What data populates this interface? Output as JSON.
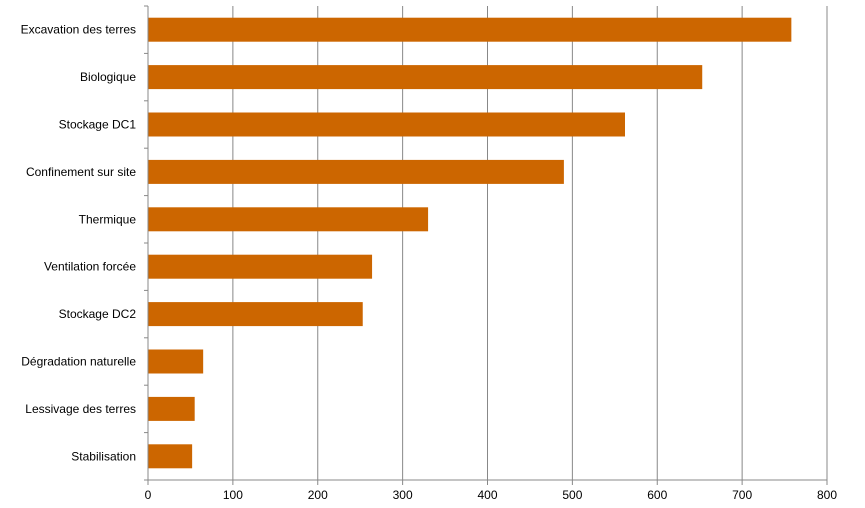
{
  "chart_data": {
    "type": "bar",
    "orientation": "horizontal",
    "title": "",
    "xlabel": "",
    "ylabel": "",
    "categories": [
      "Excavation des terres",
      "Biologique",
      "Stockage DC1",
      "Confinement sur site",
      "Thermique",
      "Ventilation forcée",
      "Stockage DC2",
      "Dégradation naturelle",
      "Lessivage des terres",
      "Stabilisation"
    ],
    "values": [
      758,
      653,
      562,
      490,
      330,
      264,
      253,
      65,
      55,
      52
    ],
    "xlim": [
      0,
      800
    ],
    "xticks": [
      0,
      100,
      200,
      300,
      400,
      500,
      600,
      700,
      800
    ],
    "grid": "vertical",
    "legend": "none",
    "colors": {
      "bar": "#CC6600",
      "grid": "#888888",
      "axis": "#888888"
    }
  }
}
